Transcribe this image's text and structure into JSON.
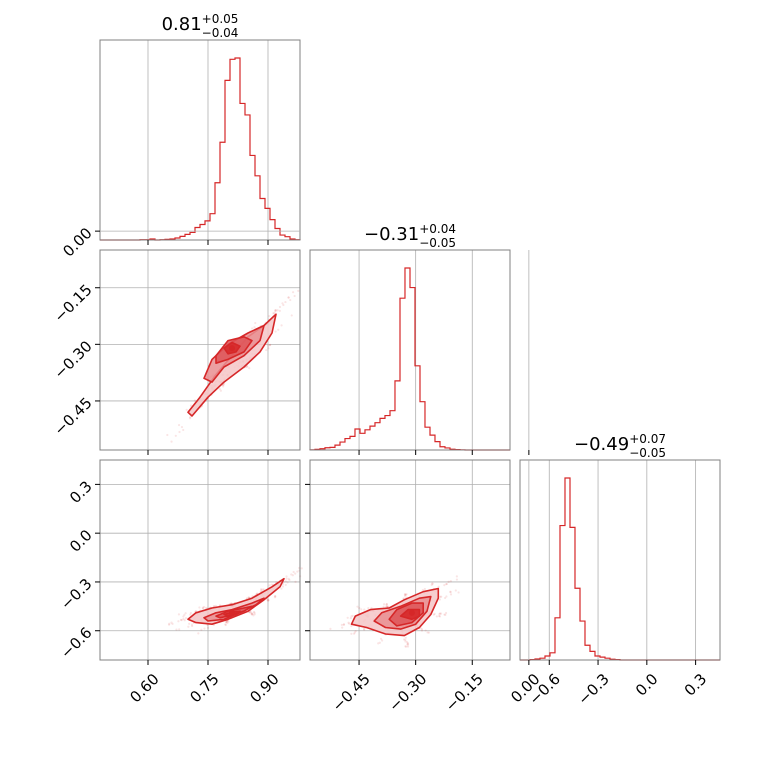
{
  "colors": {
    "main": "#d62728",
    "fill_outer": "#f4c6c7",
    "fill_mid": "#e98e90",
    "fill_inner": "#de5457",
    "grid": "#b0b0b0",
    "frame": "#808080"
  },
  "chart_data": {
    "type": "corner",
    "parameters": 3,
    "grid": true,
    "titles": [
      {
        "value": "0.81",
        "plus": "+0.05",
        "minus": "−0.04"
      },
      {
        "value": "−0.31",
        "plus": "+0.04",
        "minus": "−0.05"
      },
      {
        "value": "−0.49",
        "plus": "+0.07",
        "minus": "−0.05"
      }
    ],
    "axis_ranges": [
      [
        0.48,
        0.98
      ],
      [
        -0.58,
        -0.05
      ],
      [
        -0.78,
        0.45
      ]
    ],
    "x_ticks": [
      {
        "values": [
          0.6,
          0.75,
          0.9
        ],
        "labels": [
          "0.60",
          "0.75",
          "0.90"
        ]
      },
      {
        "values": [
          -0.45,
          -0.3,
          -0.15,
          0.0
        ],
        "labels": [
          "−0.45",
          "−0.30",
          "−0.15",
          "0.00"
        ]
      },
      {
        "values": [
          -0.6,
          -0.3,
          0.0,
          0.3
        ],
        "labels": [
          "−0.6",
          "−0.3",
          "0.0",
          "0.3"
        ]
      }
    ],
    "y_ticks": [
      {
        "values": [],
        "labels": []
      },
      {
        "values": [
          0.0,
          -0.15,
          -0.3,
          -0.45
        ],
        "labels": [
          "0.00",
          "−0.15",
          "−0.30",
          "−0.45"
        ]
      },
      {
        "values": [
          0.3,
          0.0,
          -0.3,
          -0.6
        ],
        "labels": [
          "0.3",
          "0.0",
          "−0.3",
          "−0.6"
        ]
      }
    ],
    "histograms": [
      {
        "param": 0,
        "edges": [
          0.48,
          0.4925,
          0.505,
          0.5175,
          0.53,
          0.5425,
          0.555,
          0.5675,
          0.58,
          0.5925,
          0.605,
          0.6175,
          0.63,
          0.6425,
          0.655,
          0.6675,
          0.68,
          0.6925,
          0.705,
          0.7175,
          0.73,
          0.7425,
          0.755,
          0.7675,
          0.78,
          0.7925,
          0.805,
          0.8175,
          0.83,
          0.8425,
          0.855,
          0.8675,
          0.88,
          0.8925,
          0.905,
          0.9175,
          0.93,
          0.9425,
          0.955,
          0.9675,
          0.98
        ],
        "counts": [
          0,
          0,
          0,
          0,
          0,
          0,
          0,
          0,
          1,
          1,
          3,
          0,
          1,
          2,
          3,
          6,
          11,
          17,
          23,
          38,
          47,
          58,
          80,
          174,
          297,
          485,
          549,
          553,
          415,
          380,
          257,
          195,
          126,
          96,
          62,
          35,
          15,
          10,
          3,
          1
        ]
      },
      {
        "param": 1,
        "edges": [
          -0.58,
          -0.5668,
          -0.5535,
          -0.5403,
          -0.527,
          -0.5138,
          -0.5005,
          -0.4873,
          -0.474,
          -0.4608,
          -0.4475,
          -0.4343,
          -0.421,
          -0.4078,
          -0.3945,
          -0.3813,
          -0.368,
          -0.3548,
          -0.3415,
          -0.3283,
          -0.315,
          -0.3018,
          -0.2885,
          -0.2753,
          -0.262,
          -0.2488,
          -0.2355,
          -0.2223,
          -0.209,
          -0.1958,
          -0.1825,
          -0.1693,
          -0.156,
          -0.1428,
          -0.1295,
          -0.1163,
          -0.103,
          -0.0898,
          -0.0765,
          -0.0633,
          -0.05
        ],
        "counts": [
          1,
          3,
          6,
          11,
          13,
          24,
          39,
          56,
          67,
          103,
          82,
          99,
          117,
          134,
          155,
          169,
          193,
          339,
          745,
          893,
          797,
          413,
          237,
          112,
          73,
          41,
          16,
          10,
          4,
          2,
          1,
          0,
          0,
          0,
          0,
          0,
          0,
          0,
          0,
          0
        ]
      },
      {
        "param": 2,
        "edges": [
          -0.78,
          -0.7493,
          -0.7185,
          -0.6878,
          -0.657,
          -0.6263,
          -0.5955,
          -0.5648,
          -0.534,
          -0.5033,
          -0.4725,
          -0.4418,
          -0.411,
          -0.3803,
          -0.3495,
          -0.3188,
          -0.288,
          -0.2573,
          -0.2265,
          -0.1958,
          -0.165,
          -0.1343,
          -0.1035,
          -0.0728,
          -0.042,
          -0.0113,
          0.0195,
          0.0503,
          0.081,
          0.1118,
          0.1425,
          0.1733,
          0.204,
          0.2348,
          0.2655,
          0.2963,
          0.327,
          0.3578,
          0.3885,
          0.4193,
          0.45
        ],
        "counts": [
          0,
          0,
          1,
          3,
          5,
          11,
          20,
          117,
          373,
          505,
          368,
          199,
          108,
          41,
          24,
          11,
          8,
          5,
          2,
          1,
          0,
          0,
          0,
          0,
          0,
          0,
          0,
          0,
          0,
          0,
          0,
          0,
          0,
          0,
          0,
          0,
          0,
          0,
          0,
          0
        ]
      }
    ],
    "panels_2d": [
      {
        "x_param": 0,
        "y_param": 1,
        "center": [
          0.81,
          -0.31
        ],
        "contours": [
          [
            [
              0.7,
              -0.48
            ],
            [
              0.73,
              -0.44
            ],
            [
              0.77,
              -0.38
            ],
            [
              0.81,
              -0.33
            ],
            [
              0.85,
              -0.28
            ],
            [
              0.89,
              -0.25
            ],
            [
              0.92,
              -0.22
            ],
            [
              0.91,
              -0.27
            ],
            [
              0.88,
              -0.32
            ],
            [
              0.84,
              -0.36
            ],
            [
              0.79,
              -0.4
            ],
            [
              0.75,
              -0.44
            ],
            [
              0.71,
              -0.49
            ]
          ],
          [
            [
              0.74,
              -0.39
            ],
            [
              0.76,
              -0.34
            ],
            [
              0.8,
              -0.3
            ],
            [
              0.85,
              -0.27
            ],
            [
              0.89,
              -0.25
            ],
            [
              0.88,
              -0.29
            ],
            [
              0.84,
              -0.33
            ],
            [
              0.79,
              -0.36
            ],
            [
              0.76,
              -0.4
            ]
          ],
          [
            [
              0.77,
              -0.33
            ],
            [
              0.8,
              -0.29
            ],
            [
              0.84,
              -0.28
            ],
            [
              0.86,
              -0.29
            ],
            [
              0.84,
              -0.32
            ],
            [
              0.8,
              -0.34
            ],
            [
              0.77,
              -0.35
            ]
          ],
          [
            [
              0.79,
              -0.31
            ],
            [
              0.81,
              -0.295
            ],
            [
              0.83,
              -0.305
            ],
            [
              0.82,
              -0.32
            ],
            [
              0.8,
              -0.325
            ]
          ]
        ]
      },
      {
        "x_param": 0,
        "y_param": 2,
        "center": [
          0.81,
          -0.49
        ],
        "contours": [
          [
            [
              0.7,
              -0.53
            ],
            [
              0.72,
              -0.49
            ],
            [
              0.76,
              -0.46
            ],
            [
              0.81,
              -0.44
            ],
            [
              0.86,
              -0.4
            ],
            [
              0.91,
              -0.33
            ],
            [
              0.94,
              -0.28
            ],
            [
              0.93,
              -0.33
            ],
            [
              0.89,
              -0.41
            ],
            [
              0.85,
              -0.48
            ],
            [
              0.8,
              -0.53
            ],
            [
              0.76,
              -0.56
            ],
            [
              0.72,
              -0.55
            ]
          ],
          [
            [
              0.74,
              -0.52
            ],
            [
              0.77,
              -0.49
            ],
            [
              0.81,
              -0.47
            ],
            [
              0.86,
              -0.43
            ],
            [
              0.89,
              -0.4
            ],
            [
              0.87,
              -0.44
            ],
            [
              0.83,
              -0.49
            ],
            [
              0.79,
              -0.53
            ],
            [
              0.75,
              -0.54
            ]
          ],
          [
            [
              0.77,
              -0.51
            ],
            [
              0.8,
              -0.48
            ],
            [
              0.84,
              -0.46
            ],
            [
              0.86,
              -0.45
            ],
            [
              0.84,
              -0.48
            ],
            [
              0.8,
              -0.51
            ],
            [
              0.78,
              -0.52
            ]
          ],
          [
            [
              0.79,
              -0.5
            ],
            [
              0.81,
              -0.485
            ],
            [
              0.83,
              -0.48
            ],
            [
              0.82,
              -0.5
            ],
            [
              0.8,
              -0.51
            ]
          ]
        ]
      },
      {
        "x_param": 1,
        "y_param": 2,
        "center": [
          -0.31,
          -0.49
        ],
        "contours": [
          [
            [
              -0.47,
              -0.56
            ],
            [
              -0.46,
              -0.51
            ],
            [
              -0.42,
              -0.47
            ],
            [
              -0.37,
              -0.46
            ],
            [
              -0.33,
              -0.41
            ],
            [
              -0.28,
              -0.36
            ],
            [
              -0.24,
              -0.34
            ],
            [
              -0.24,
              -0.4
            ],
            [
              -0.26,
              -0.5
            ],
            [
              -0.29,
              -0.58
            ],
            [
              -0.33,
              -0.63
            ],
            [
              -0.38,
              -0.62
            ],
            [
              -0.43,
              -0.58
            ]
          ],
          [
            [
              -0.41,
              -0.54
            ],
            [
              -0.39,
              -0.49
            ],
            [
              -0.34,
              -0.45
            ],
            [
              -0.29,
              -0.4
            ],
            [
              -0.26,
              -0.39
            ],
            [
              -0.27,
              -0.48
            ],
            [
              -0.3,
              -0.56
            ],
            [
              -0.34,
              -0.59
            ],
            [
              -0.38,
              -0.58
            ]
          ],
          [
            [
              -0.37,
              -0.53
            ],
            [
              -0.35,
              -0.47
            ],
            [
              -0.31,
              -0.43
            ],
            [
              -0.28,
              -0.43
            ],
            [
              -0.28,
              -0.49
            ],
            [
              -0.31,
              -0.55
            ],
            [
              -0.35,
              -0.57
            ]
          ],
          [
            [
              -0.34,
              -0.51
            ],
            [
              -0.32,
              -0.47
            ],
            [
              -0.29,
              -0.47
            ],
            [
              -0.29,
              -0.51
            ],
            [
              -0.31,
              -0.53
            ]
          ]
        ]
      }
    ]
  }
}
